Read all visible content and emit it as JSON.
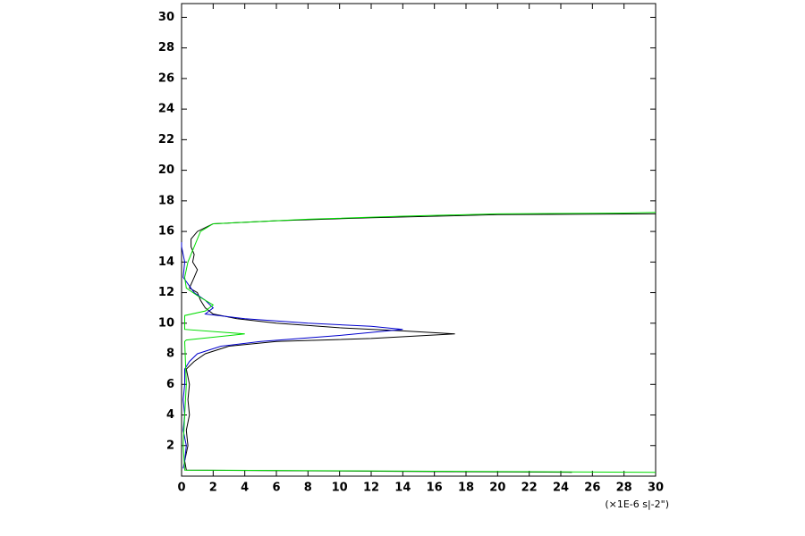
{
  "chart_data": {
    "type": "line",
    "x_label": "(×1E-6 s|-2\")",
    "xlim": [
      0,
      30
    ],
    "xticks": [
      0,
      2,
      4,
      6,
      8,
      10,
      12,
      14,
      16,
      18,
      20,
      22,
      24,
      26,
      28,
      30
    ],
    "ylim": [
      0,
      30.9
    ],
    "yticks": [
      2,
      4,
      6,
      8,
      10,
      12,
      14,
      16,
      18,
      20,
      22,
      24,
      26,
      28,
      30
    ],
    "series": [
      {
        "color": "#000000",
        "y": [
          0.25,
          0.4,
          1.0,
          2.0,
          3.0,
          4.0,
          5.0,
          6.0,
          7.0,
          7.5,
          8.0,
          8.5,
          8.8,
          9.0,
          9.3,
          9.5,
          9.7,
          10.0,
          10.3,
          10.6,
          11.0,
          11.5,
          12.0,
          12.3,
          13.0,
          13.5,
          14.0,
          14.5,
          15.0,
          15.5,
          16.0,
          16.5,
          16.7,
          16.9,
          17.1,
          17.15
        ],
        "values": [
          24.7,
          0.3,
          0.2,
          0.4,
          0.3,
          0.5,
          0.4,
          0.5,
          0.3,
          0.8,
          1.5,
          3,
          6,
          12,
          17.3,
          14,
          10,
          6,
          3.5,
          2,
          1.5,
          1.2,
          1.0,
          0.5,
          0.8,
          1.0,
          0.7,
          0.8,
          0.6,
          0.6,
          1.0,
          2,
          6,
          12,
          20,
          30
        ]
      },
      {
        "color": "#0000cc",
        "y": [
          0.5,
          1.0,
          2.0,
          3.0,
          4.0,
          5.0,
          6.0,
          7.0,
          7.5,
          8.0,
          8.5,
          8.8,
          9.2,
          9.6,
          9.8,
          10.0,
          10.3,
          10.6,
          11.0,
          11.5,
          12.0,
          13.0,
          14.0,
          15.0,
          15.3
        ],
        "values": [
          0.1,
          0.2,
          0.3,
          0.1,
          0.2,
          0.1,
          0.2,
          0.2,
          0.5,
          1.0,
          2.5,
          5,
          10,
          14,
          12,
          8,
          4,
          1.5,
          2,
          1.5,
          0.8,
          0.1,
          0.2,
          0.0,
          0.0
        ]
      },
      {
        "color": "#00dd00",
        "y": [
          0.25,
          0.4,
          2.0,
          4.0,
          6.0,
          8.8,
          8.9,
          9.3,
          9.6,
          10.5,
          10.8,
          11.2,
          11.8,
          12.3,
          13.0,
          14.0,
          15.0,
          16.0,
          16.5,
          16.8,
          17.0,
          17.15,
          17.2,
          17.25
        ],
        "values": [
          30,
          0.2,
          0.1,
          0.2,
          0.3,
          0.2,
          0.3,
          4,
          0.2,
          0.2,
          1.5,
          2,
          1,
          0.3,
          0.2,
          0.4,
          0.8,
          1.2,
          2,
          8,
          14,
          20,
          28,
          30
        ]
      }
    ]
  }
}
